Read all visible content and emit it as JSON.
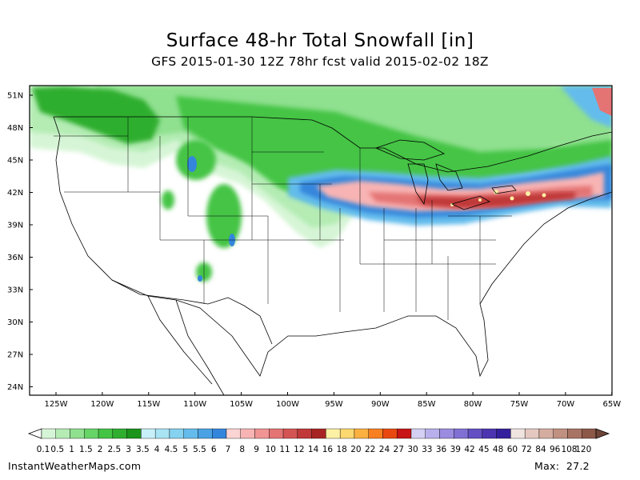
{
  "title": "Surface 48-hr Total Snowfall [in]",
  "subtitle": "GFS 2015-01-30 12Z 78hr fcst valid 2015-02-02 18Z",
  "credit": "InstantWeatherMaps.com",
  "max_label": "Max:",
  "max_value": "27.2",
  "lat_labels": [
    "51N",
    "48N",
    "45N",
    "42N",
    "39N",
    "36N",
    "33N",
    "30N",
    "27N",
    "24N"
  ],
  "lon_labels": [
    "125W",
    "120W",
    "115W",
    "110W",
    "105W",
    "100W",
    "95W",
    "90W",
    "85W",
    "80W",
    "75W",
    "70W",
    "65W"
  ],
  "colorbar": {
    "labels": [
      "0.1",
      "0.5",
      "1",
      "1.5",
      "2",
      "2.5",
      "3",
      "3.5",
      "4",
      "4.5",
      "5",
      "5.5",
      "6",
      "7",
      "8",
      "9",
      "10",
      "11",
      "12",
      "14",
      "16",
      "18",
      "20",
      "22",
      "24",
      "27",
      "30",
      "33",
      "36",
      "39",
      "42",
      "45",
      "48",
      "60",
      "72",
      "84",
      "96",
      "108",
      "120"
    ],
    "colors": [
      "#d6f5d6",
      "#b4ecb4",
      "#8fe08f",
      "#66d466",
      "#44c444",
      "#2fae2f",
      "#1a941a",
      "#c8f0f8",
      "#a8e4f4",
      "#86d2f0",
      "#64bcec",
      "#4aa2e4",
      "#3486dc",
      "#fcd4d4",
      "#f8b4b4",
      "#f09494",
      "#e47474",
      "#d45454",
      "#c03838",
      "#a82424",
      "#fcf0a4",
      "#fcd870",
      "#fcb040",
      "#f88020",
      "#e84810",
      "#c81414",
      "#d4d0f4",
      "#b8b0ec",
      "#9c8ce0",
      "#8070d4",
      "#6450c4",
      "#4c34b0",
      "#34209c",
      "#f0e4e0",
      "#e4c8c0",
      "#d4aca0",
      "#c09080",
      "#a87464",
      "#8c5848"
    ]
  },
  "legend": "none",
  "projection": "lat-lon",
  "map_extent": {
    "lon": [
      -128,
      -65
    ],
    "lat": [
      23,
      52
    ]
  }
}
